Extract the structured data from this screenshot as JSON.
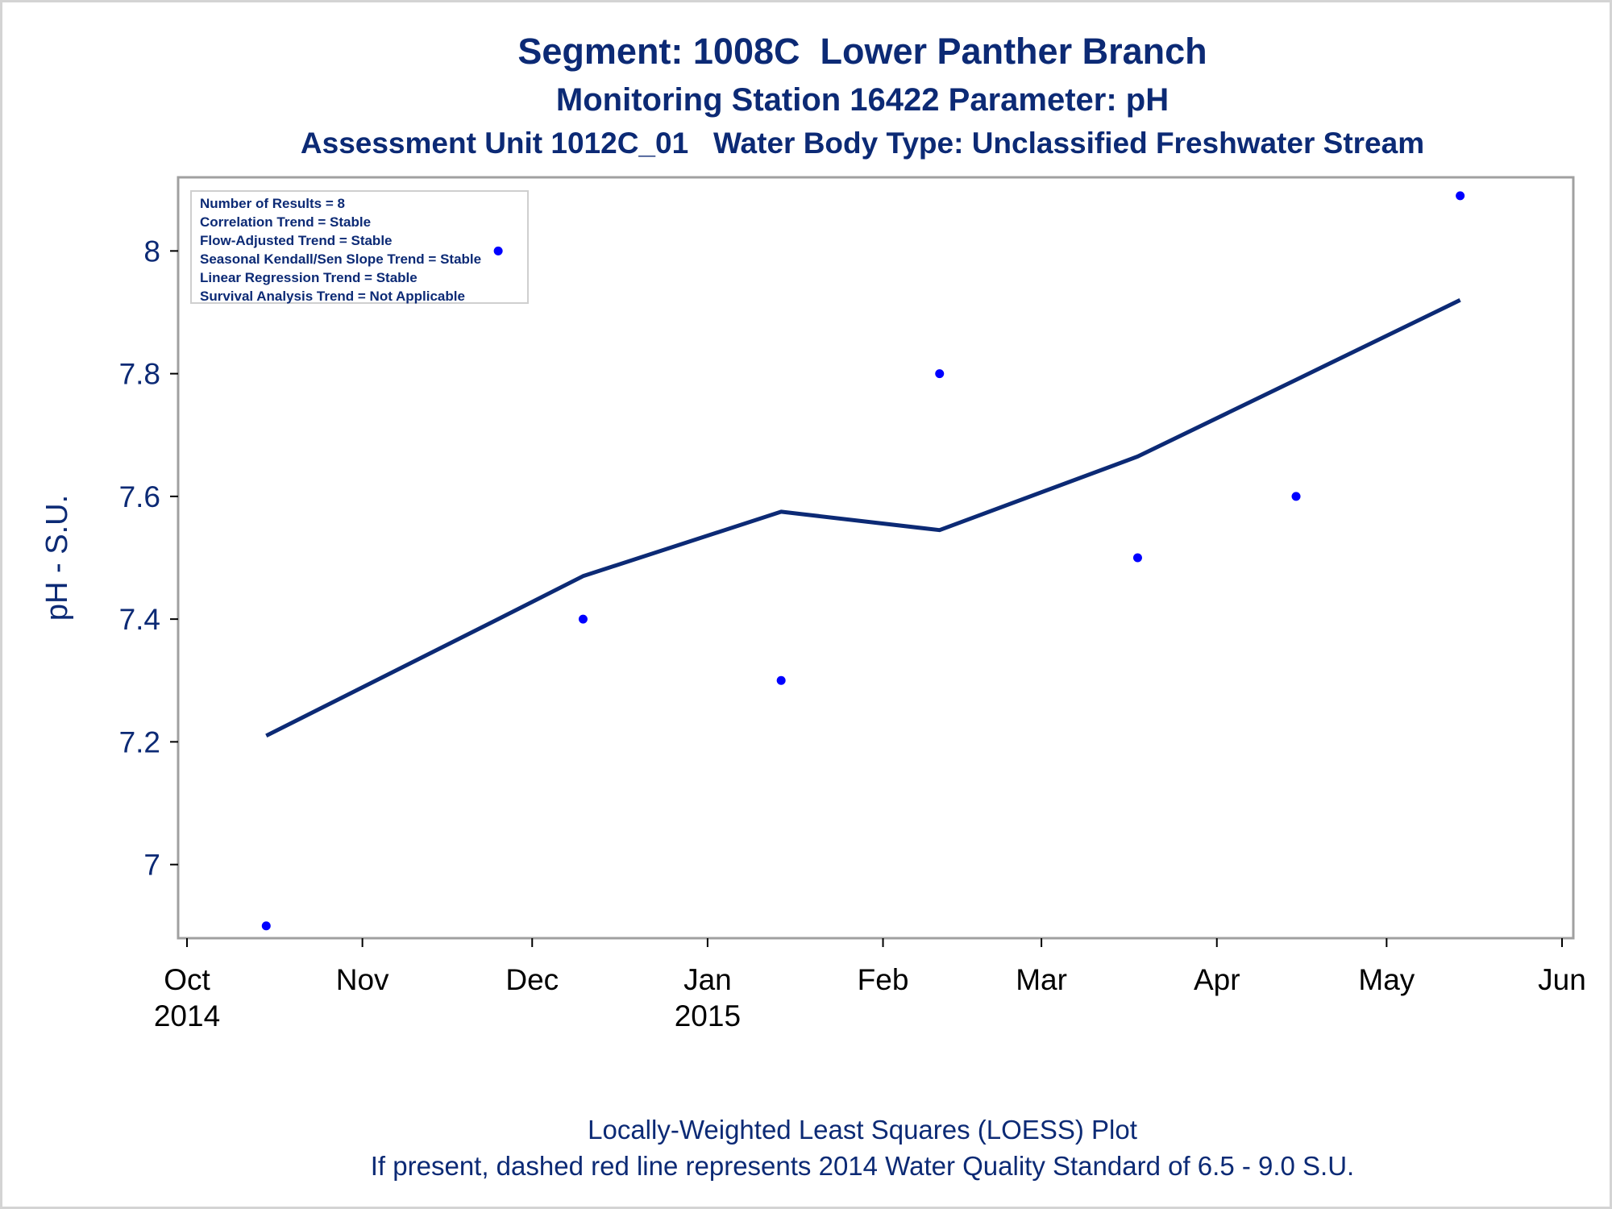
{
  "titles": {
    "line1": "Segment: 1008C  Lower Panther Branch",
    "line2": "Monitoring Station 16422 Parameter: pH",
    "line3": "Assessment Unit 1012C_01   Water Body Type: Unclassified Freshwater Stream"
  },
  "footer": {
    "line1": "Locally-Weighted Least Squares (LOESS) Plot",
    "line2": "If present, dashed red line represents 2014 Water Quality Standard of 6.5 - 9.0 S.U."
  },
  "legend": {
    "items": [
      "Number of Results = 8",
      "Correlation Trend = Stable",
      "Flow-Adjusted Trend = Stable",
      "Seasonal Kendall/Sen Slope Trend = Stable",
      "Linear Regression Trend = Stable",
      "Survival Analysis Trend = Not Applicable"
    ]
  },
  "colors": {
    "text": "#0c2a75",
    "points": "#0000ff",
    "loess": "#0c2a75",
    "frame": "#a0a0a0"
  },
  "chart_data": {
    "type": "scatter",
    "ylabel": "pH - S.U.",
    "xlabel": "",
    "xlim": [
      "2014-10-01",
      "2015-06-01"
    ],
    "ylim": [
      6.88,
      8.12
    ],
    "x_ticks": [
      {
        "date": "2014-10-01",
        "label": "Oct",
        "sub": "2014"
      },
      {
        "date": "2014-11-01",
        "label": "Nov",
        "sub": ""
      },
      {
        "date": "2014-12-01",
        "label": "Dec",
        "sub": ""
      },
      {
        "date": "2015-01-01",
        "label": "Jan",
        "sub": "2015"
      },
      {
        "date": "2015-02-01",
        "label": "Feb",
        "sub": ""
      },
      {
        "date": "2015-03-01",
        "label": "Mar",
        "sub": ""
      },
      {
        "date": "2015-04-01",
        "label": "Apr",
        "sub": ""
      },
      {
        "date": "2015-05-01",
        "label": "May",
        "sub": ""
      },
      {
        "date": "2015-06-01",
        "label": "Jun",
        "sub": ""
      }
    ],
    "y_ticks": [
      {
        "value": 7.0,
        "label": "7"
      },
      {
        "value": 7.2,
        "label": "7.2"
      },
      {
        "value": 7.4,
        "label": "7.4"
      },
      {
        "value": 7.6,
        "label": "7.6"
      },
      {
        "value": 7.8,
        "label": "7.8"
      },
      {
        "value": 8.0,
        "label": "8"
      }
    ],
    "points": [
      {
        "date": "2014-10-15",
        "y": 6.9
      },
      {
        "date": "2014-11-25",
        "y": 8.0
      },
      {
        "date": "2014-12-10",
        "y": 7.4
      },
      {
        "date": "2015-01-14",
        "y": 7.3
      },
      {
        "date": "2015-02-11",
        "y": 7.8
      },
      {
        "date": "2015-03-18",
        "y": 7.5
      },
      {
        "date": "2015-04-15",
        "y": 7.6
      },
      {
        "date": "2015-05-14",
        "y": 8.09
      }
    ],
    "loess": [
      {
        "date": "2014-10-15",
        "y": 7.21
      },
      {
        "date": "2014-11-25",
        "y": 7.4
      },
      {
        "date": "2014-12-10",
        "y": 7.47
      },
      {
        "date": "2015-01-14",
        "y": 7.575
      },
      {
        "date": "2015-02-11",
        "y": 7.545
      },
      {
        "date": "2015-03-18",
        "y": 7.665
      },
      {
        "date": "2015-04-15",
        "y": 7.79
      },
      {
        "date": "2015-05-14",
        "y": 7.92
      }
    ],
    "grid": false,
    "legend_position": "top-left"
  }
}
